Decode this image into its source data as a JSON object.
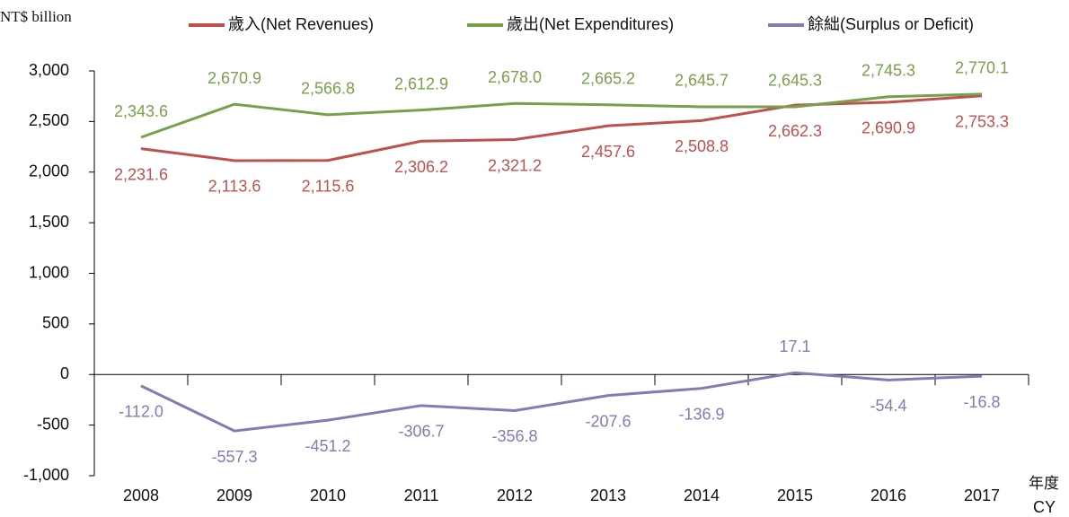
{
  "chart_data": {
    "type": "line",
    "y_label": "NT$ billion",
    "x_label_lines": [
      "年度",
      "CY"
    ],
    "categories": [
      "2008",
      "2009",
      "2010",
      "2011",
      "2012",
      "2013",
      "2014",
      "2015",
      "2016",
      "2017"
    ],
    "series": [
      {
        "name": "歲入(Net Revenues)",
        "color": "#c0504d",
        "label_position": "below",
        "values": [
          2231.6,
          2113.6,
          2115.6,
          2306.2,
          2321.2,
          2457.6,
          2508.8,
          2662.3,
          2690.9,
          2753.3
        ],
        "value_labels": [
          "2,231.6",
          "2,113.6",
          "2,115.6",
          "2,306.2",
          "2,321.2",
          "2,457.6",
          "2,508.8",
          "2,662.3",
          "2,690.9",
          "2,753.3"
        ]
      },
      {
        "name": "歲出(Net Expenditures)",
        "color": "#77a04a",
        "label_position": "above",
        "values": [
          2343.6,
          2670.9,
          2566.8,
          2612.9,
          2678.0,
          2665.2,
          2645.7,
          2645.3,
          2745.3,
          2770.1
        ],
        "value_labels": [
          "2,343.6",
          "2,670.9",
          "2,566.8",
          "2,612.9",
          "2,678.0",
          "2,665.2",
          "2,645.7",
          "2,645.3",
          "2,745.3",
          "2,770.1"
        ]
      },
      {
        "name": "餘絀(Surplus or Deficit)",
        "color": "#8779b2",
        "label_position": "auto",
        "values": [
          -112.0,
          -557.3,
          -451.2,
          -306.7,
          -356.8,
          -207.6,
          -136.9,
          17.1,
          -54.4,
          -16.8
        ],
        "value_labels": [
          "-112.0",
          "-557.3",
          "-451.2",
          "-306.7",
          "-356.8",
          "-207.6",
          "-136.9",
          "17.1",
          "-54.4",
          "-16.8"
        ]
      }
    ],
    "ylim": [
      -1000,
      3000
    ],
    "yticks": [
      {
        "value": -1000,
        "label": "-1,000"
      },
      -500,
      0,
      500,
      {
        "value": 1000,
        "label": "1,000"
      },
      {
        "value": 1500,
        "label": "1,500"
      },
      {
        "value": 2000,
        "label": "2,000"
      },
      {
        "value": 2500,
        "label": "2,500"
      },
      {
        "value": 3000,
        "label": "3,000"
      }
    ],
    "legend": "top"
  }
}
